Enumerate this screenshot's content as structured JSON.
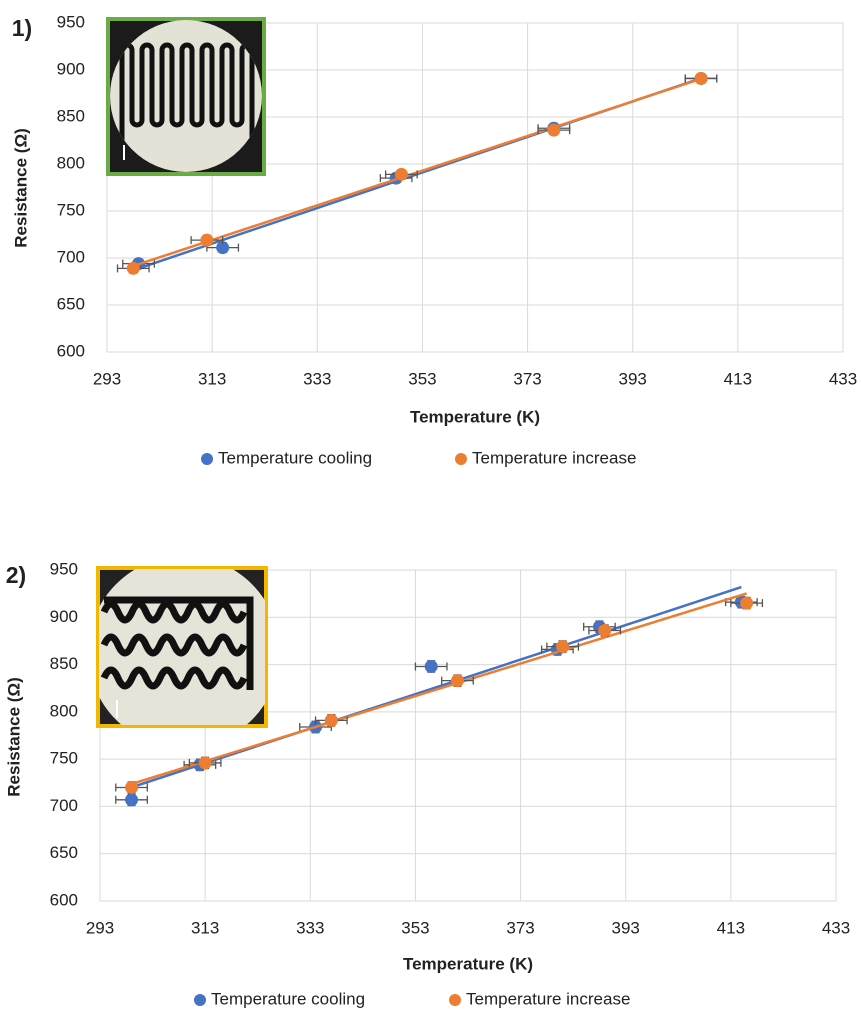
{
  "chart_data": [
    {
      "type": "scatter",
      "label": "1)",
      "xlabel": "Temperature (K)",
      "ylabel": "Resistance (Ω)",
      "xlim": [
        293,
        433
      ],
      "xticks": [
        293,
        313,
        333,
        353,
        373,
        393,
        413,
        433
      ],
      "ylim": [
        600,
        950
      ],
      "yticks": [
        600,
        650,
        700,
        750,
        800,
        850,
        900,
        950
      ],
      "grid": true,
      "trendline": "linear",
      "legend": "bottom",
      "series": [
        {
          "name": "Temperature cooling",
          "color": "#4472c4",
          "x": [
            299,
            315,
            348,
            378,
            406
          ],
          "values": [
            694,
            711,
            785,
            838,
            891
          ],
          "x_error": 3,
          "y_error": 5
        },
        {
          "name": "Temperature increase",
          "color": "#ed7d31",
          "x": [
            298,
            312,
            349,
            378,
            406
          ],
          "values": [
            689,
            719,
            789,
            836,
            891
          ],
          "x_error": 3,
          "y_error": 5
        }
      ]
    },
    {
      "type": "scatter",
      "label": "2)",
      "xlabel": "Temperature (K)",
      "ylabel": "Resistance (Ω)",
      "xlim": [
        293,
        433
      ],
      "xticks": [
        293,
        313,
        333,
        353,
        373,
        393,
        413,
        433
      ],
      "ylim": [
        600,
        950
      ],
      "yticks": [
        600,
        650,
        700,
        750,
        800,
        850,
        900,
        950
      ],
      "grid": true,
      "trendline": "linear",
      "legend": "bottom",
      "series": [
        {
          "name": "Temperature cooling",
          "color": "#4472c4",
          "x": [
            299,
            312,
            334,
            356,
            380,
            388,
            415
          ],
          "values": [
            707,
            744,
            784,
            848,
            866,
            890,
            916
          ],
          "x_error": 3,
          "y_error": 6
        },
        {
          "name": "Temperature increase",
          "color": "#ed7d31",
          "x": [
            299,
            313,
            337,
            361,
            381,
            389,
            416
          ],
          "values": [
            720,
            746,
            791,
            833,
            869,
            886,
            915
          ],
          "x_error": 3,
          "y_error": 6
        }
      ]
    }
  ]
}
